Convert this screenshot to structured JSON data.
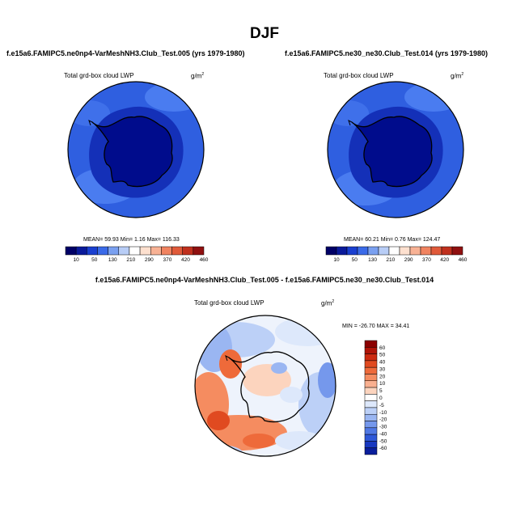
{
  "title": "DJF",
  "colors": {
    "ocean_blue": "#2f5fe0",
    "ocean_light": "#4a7cf0",
    "land_navy": "#000c8c",
    "land_mid": "#1430b8",
    "diff_red": "#f08a6a",
    "diff_white": "#f6f6f6",
    "diff_blue": "#8fb2f5"
  },
  "chart_data": [
    {
      "type": "heatmap",
      "panel": "top-left",
      "case_title": "f.e15a6.FAMIPC5.ne0np4-VarMeshNH3.Club_Test.005 (yrs 1979-1980)",
      "field_label": "Total grd-box cloud LWP",
      "units_base": "g/m",
      "units_exp": "2",
      "stats": {
        "mean": "59.93",
        "min": "1.16",
        "max": "116.33"
      },
      "stats_text": "MEAN=  59.93  Min=   1.16  Max= 116.33",
      "colorbar": {
        "ticks": [
          "10",
          "50",
          "130",
          "210",
          "290",
          "370",
          "420",
          "460"
        ],
        "colors": [
          "#000066",
          "#0a1a9a",
          "#1a3fd0",
          "#3a6ae8",
          "#7aa0f0",
          "#b8cdf6",
          "#ffffff",
          "#fde0cf",
          "#f8b295",
          "#f08360",
          "#e05a3a",
          "#c0301e",
          "#901010"
        ]
      }
    },
    {
      "type": "heatmap",
      "panel": "top-right",
      "case_title": "f.e15a6.FAMIPC5.ne30_ne30.Club_Test.014 (yrs 1979-1980)",
      "field_label": "Total grd-box cloud LWP",
      "units_base": "g/m",
      "units_exp": "2",
      "stats": {
        "mean": "60.21",
        "min": "0.76",
        "max": "124.47"
      },
      "stats_text": "MEAN=  60.21  Min=   0.76  Max= 124.47",
      "colorbar": {
        "ticks": [
          "10",
          "50",
          "130",
          "210",
          "290",
          "370",
          "420",
          "460"
        ],
        "colors": [
          "#000066",
          "#0a1a9a",
          "#1a3fd0",
          "#3a6ae8",
          "#7aa0f0",
          "#b8cdf6",
          "#ffffff",
          "#fde0cf",
          "#f8b295",
          "#f08360",
          "#e05a3a",
          "#c0301e",
          "#901010"
        ]
      }
    },
    {
      "type": "heatmap",
      "panel": "bottom",
      "case_title": "f.e15a6.FAMIPC5.ne0np4-VarMeshNH3.Club_Test.005 - f.e15a6.FAMIPC5.ne30_ne30.Club_Test.014",
      "field_label": "Total grd-box cloud LWP",
      "units_base": "g/m",
      "units_exp": "2",
      "stats": {
        "min": "-26.70",
        "max": "34.41"
      },
      "stats_text": "MIN = -26.70 MAX =  34.41",
      "colorbar": {
        "ticks": [
          "60",
          "50",
          "40",
          "30",
          "20",
          "10",
          "5",
          "0",
          "-5",
          "-10",
          "-20",
          "-30",
          "-40",
          "-50",
          "-60"
        ],
        "colors": [
          "#8b0000",
          "#b01408",
          "#cc2a10",
          "#e04a20",
          "#ee6a3a",
          "#f58c60",
          "#f9b090",
          "#fcd4be",
          "#ffffff",
          "#dde8fb",
          "#bcd0f7",
          "#9ab6f2",
          "#7598ec",
          "#5078e4",
          "#2e58d8",
          "#1838c0",
          "#0a1e9c"
        ]
      }
    }
  ]
}
